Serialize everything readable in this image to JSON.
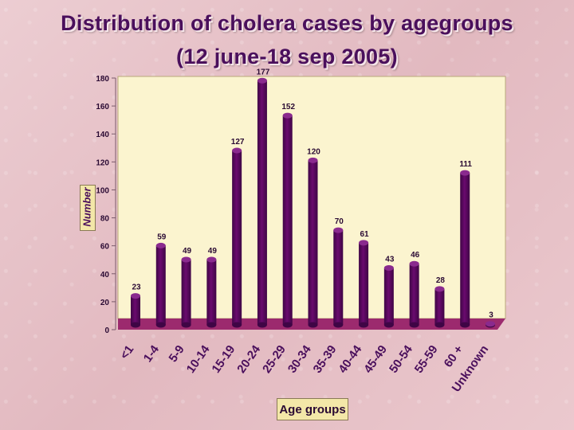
{
  "title": "Distribution of cholera cases by agegroups",
  "subtitle": "(12 june-18 sep 2005)",
  "chart_data": {
    "type": "bar",
    "title": "Distribution of cholera cases by agegroups",
    "subtitle": "(12 june-18 sep 2005)",
    "xlabel": "Age groups",
    "ylabel": "Number",
    "categories": [
      "<1",
      "1-4",
      "5-9",
      "10-14",
      "15-19",
      "20-24",
      "25-29",
      "30-34",
      "35-39",
      "40-44",
      "45-49",
      "50-54",
      "55-59",
      "60 +",
      "Unknown"
    ],
    "values": [
      23,
      59,
      49,
      49,
      127,
      177,
      152,
      120,
      70,
      61,
      43,
      46,
      28,
      111,
      3
    ],
    "yticks": [
      0,
      20,
      40,
      60,
      80,
      100,
      120,
      140,
      160,
      180
    ],
    "ylim": [
      0,
      180
    ],
    "grid": false,
    "legend": "none",
    "colors": {
      "bar": "#6a0a6e",
      "bar_dark": "#3f0545",
      "floor": "#9c2a6e",
      "plot_bg": "#fbf4cf",
      "wall_border": "#b9a77a"
    }
  }
}
